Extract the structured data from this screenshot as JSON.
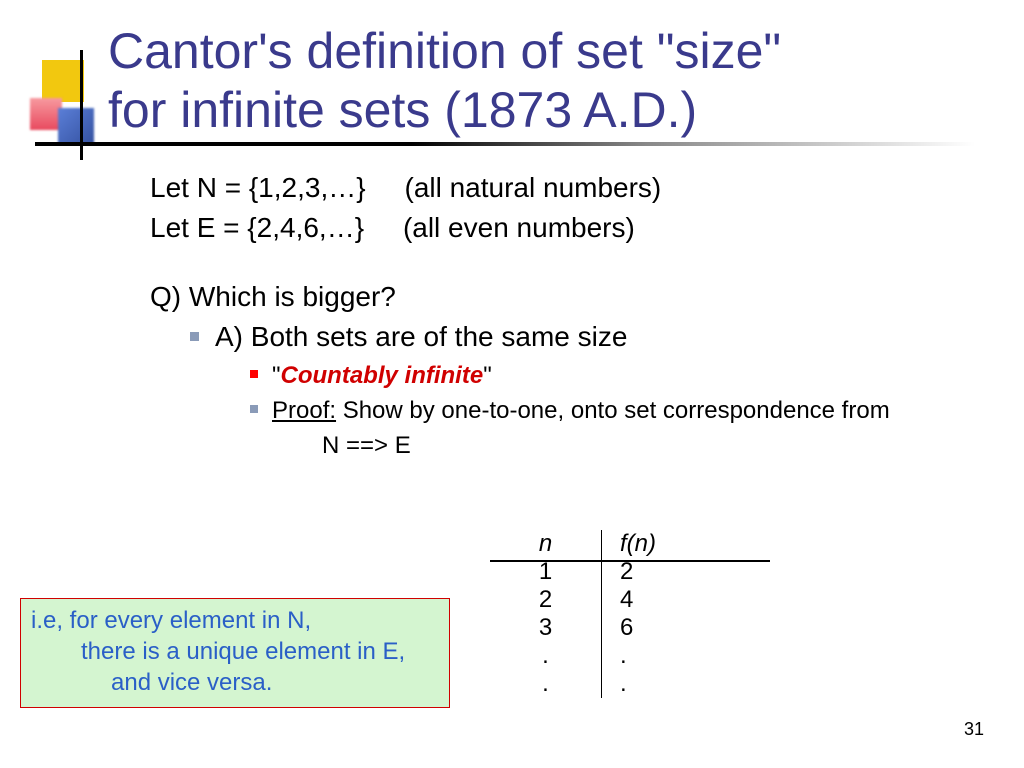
{
  "title_line1": "Cantor's definition of set \"size\"",
  "title_line2": "for infinite sets (1873 A.D.)",
  "body": {
    "let_n": "Let N = {1,2,3,…}     (all natural numbers)",
    "let_e": "Let E = {2,4,6,…}     (all even numbers)",
    "question": "Q) Which is bigger?",
    "answer": "A)  Both sets are of the same size",
    "countably_quote_l": "\"",
    "countably": "Countably infinite",
    "countably_quote_r": "\"",
    "proof_label": "Proof:",
    "proof_text": " Show by one-to-one, onto set correspondence from",
    "proof_line2": "N ==> E"
  },
  "note": {
    "l1": "i.e, for every element in N,",
    "l2": "there is a unique element in E,",
    "l3": "and vice versa."
  },
  "table": {
    "head_l": "n",
    "head_r": "f(n)",
    "rows_l": [
      "1",
      "2",
      "3",
      ".",
      "."
    ],
    "rows_r": [
      "2",
      "4",
      "6",
      ".",
      "."
    ]
  },
  "page_number": "31",
  "colors": {
    "title": "#3a3a8c",
    "emphasis": "#d00000",
    "note_bg": "#d4f5d0",
    "note_text": "#2a5fc7",
    "bullet1": "#8a9bb8",
    "bullet2": "#ff0000"
  }
}
